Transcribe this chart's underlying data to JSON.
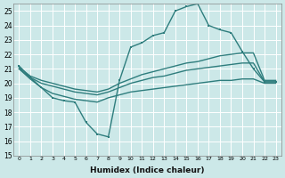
{
  "x_label": "Humidex (Indice chaleur)",
  "ylim": [
    15,
    25.5
  ],
  "xlim": [
    -0.5,
    23.5
  ],
  "yticks": [
    15,
    16,
    17,
    18,
    19,
    20,
    21,
    22,
    23,
    24,
    25
  ],
  "x_ticks": [
    0,
    1,
    2,
    3,
    4,
    5,
    6,
    7,
    8,
    9,
    10,
    11,
    12,
    13,
    14,
    15,
    16,
    17,
    18,
    19,
    20,
    21,
    22,
    23
  ],
  "background_color": "#cce8e8",
  "grid_color": "#ffffff",
  "line_color": "#2e7d7d",
  "lines": [
    {
      "x": [
        0,
        1,
        2,
        3,
        4,
        5,
        6,
        7,
        8,
        9,
        10,
        11,
        12,
        13,
        14,
        15,
        16,
        17,
        18,
        19,
        20,
        21,
        22,
        23
      ],
      "y": [
        21.0,
        20.3,
        19.7,
        19.3,
        19.1,
        18.9,
        18.8,
        18.7,
        19.0,
        19.2,
        19.4,
        19.5,
        19.6,
        19.7,
        19.8,
        19.9,
        20.0,
        20.1,
        20.2,
        20.2,
        20.3,
        20.3,
        20.0,
        20.0
      ],
      "marker": false,
      "lw": 1.0
    },
    {
      "x": [
        0,
        1,
        2,
        3,
        4,
        5,
        6,
        7,
        8,
        9,
        10,
        11,
        12,
        13,
        14,
        15,
        16,
        17,
        18,
        19,
        20,
        21,
        22,
        23
      ],
      "y": [
        21.0,
        20.4,
        20.0,
        19.8,
        19.6,
        19.4,
        19.3,
        19.2,
        19.4,
        19.7,
        20.0,
        20.2,
        20.4,
        20.5,
        20.7,
        20.9,
        21.0,
        21.1,
        21.2,
        21.3,
        21.4,
        21.4,
        20.1,
        20.1
      ],
      "marker": false,
      "lw": 1.0
    },
    {
      "x": [
        0,
        1,
        2,
        3,
        4,
        5,
        6,
        7,
        8,
        9,
        10,
        11,
        12,
        13,
        14,
        15,
        16,
        17,
        18,
        19,
        20,
        21,
        22,
        23
      ],
      "y": [
        21.1,
        20.5,
        20.2,
        20.0,
        19.8,
        19.6,
        19.5,
        19.4,
        19.6,
        20.0,
        20.3,
        20.6,
        20.8,
        21.0,
        21.2,
        21.4,
        21.5,
        21.7,
        21.9,
        22.0,
        22.1,
        22.1,
        20.2,
        20.2
      ],
      "marker": false,
      "lw": 1.0
    },
    {
      "x": [
        0,
        1,
        2,
        3,
        4,
        5,
        6,
        7,
        8,
        9,
        10,
        11,
        12,
        13,
        14,
        15,
        16,
        17,
        18,
        19,
        20,
        21,
        22,
        23
      ],
      "y": [
        21.2,
        20.4,
        19.7,
        19.0,
        18.8,
        18.7,
        17.3,
        16.5,
        16.3,
        20.2,
        22.5,
        22.8,
        23.3,
        23.5,
        25.0,
        25.3,
        25.5,
        24.0,
        23.7,
        23.5,
        22.2,
        21.0,
        20.1,
        20.1
      ],
      "marker": true,
      "lw": 1.0
    }
  ]
}
